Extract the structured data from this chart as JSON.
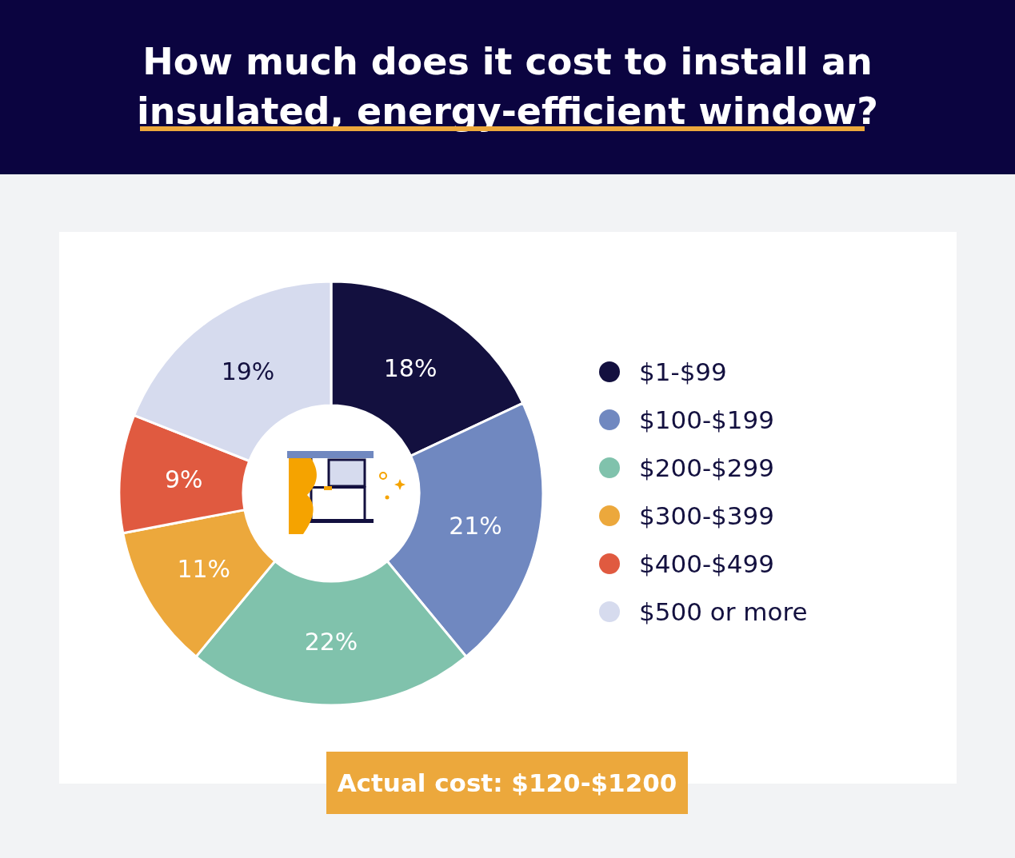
{
  "chart_data": {
    "type": "donut",
    "title": "How much does it cost to install an insulated, energy-efficient window?",
    "categories": [
      "$1-$99",
      "$100-$199",
      "$200-$299",
      "$300-$399",
      "$400-$499",
      "$500 or more"
    ],
    "values": [
      18,
      21,
      22,
      11,
      9,
      19
    ],
    "colors": [
      "#13103f",
      "#7088c0",
      "#80c2ac",
      "#eca83c",
      "#e05a40",
      "#d6dbee"
    ],
    "value_labels": [
      "18%",
      "21%",
      "22%",
      "11%",
      "9%",
      "19%"
    ],
    "legend": "right",
    "annotations": [
      "Actual cost: $120-$1200"
    ]
  }
}
